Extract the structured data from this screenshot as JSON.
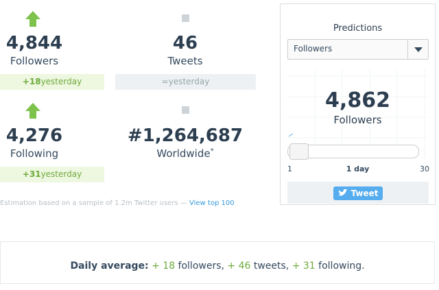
{
  "stats": [
    {
      "value": "4,844",
      "label": "Followers",
      "change": "+18",
      "change_label": "yesterday"
    },
    {
      "value": "46",
      "label": "Tweets",
      "change": "=",
      "change_label": "yesterday"
    },
    {
      "value": "4,276",
      "label": "Following",
      "change": "+31",
      "change_label": "yesterday"
    },
    {
      "value": "#1,264,687",
      "label": "Worldwide",
      "note": "*"
    }
  ],
  "footnote": {
    "text": "Estimation based on a sample of 1.2m Twitter users — ",
    "link": "View top 100"
  },
  "predictions": {
    "title": "Predictions",
    "select": "Followers",
    "value": "4,862",
    "label": "Followers",
    "slider_min": "1",
    "slider_value": "1 day",
    "slider_max": "30",
    "button": "Tweet"
  },
  "daily_average": {
    "label": "Daily average:",
    "followers": "+ 18",
    "followers_label": "followers,",
    "tweets": "+ 46",
    "tweets_label": "tweets,",
    "following": "+ 31",
    "following_label": "following."
  }
}
